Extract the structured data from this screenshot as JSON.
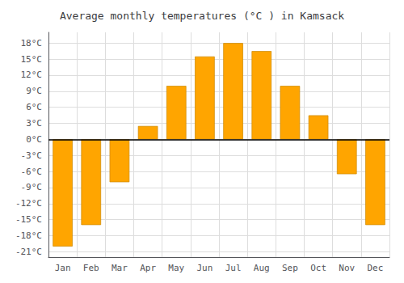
{
  "chart_data": {
    "type": "bar",
    "title": "Average monthly temperatures (°C ) in Kamsack",
    "categories": [
      "Jan",
      "Feb",
      "Mar",
      "Apr",
      "May",
      "Jun",
      "Jul",
      "Aug",
      "Sep",
      "Oct",
      "Nov",
      "Dec"
    ],
    "values": [
      -20,
      -16,
      -8,
      2.5,
      10,
      15.5,
      18,
      16.5,
      10,
      4.5,
      -6.5,
      -16
    ],
    "color": "#FFA500",
    "ylim": [
      -22,
      20
    ],
    "yticks": [
      {
        "value": -21,
        "label": "-21°C"
      },
      {
        "value": -18,
        "label": "-18°C"
      },
      {
        "value": -15,
        "label": "-15°C"
      },
      {
        "value": -12,
        "label": "-12°C"
      },
      {
        "value": -9,
        "label": "-9°C"
      },
      {
        "value": -6,
        "label": "-6°C"
      },
      {
        "value": -3,
        "label": "-3°C"
      },
      {
        "value": 0,
        "label": "0°C"
      },
      {
        "value": 3,
        "label": "3°C"
      },
      {
        "value": 6,
        "label": "6°C"
      },
      {
        "value": 9,
        "label": "9°C"
      },
      {
        "value": 12,
        "label": "12°C"
      },
      {
        "value": 15,
        "label": "15°C"
      },
      {
        "value": 18,
        "label": "18°C"
      }
    ],
    "grid": true
  }
}
